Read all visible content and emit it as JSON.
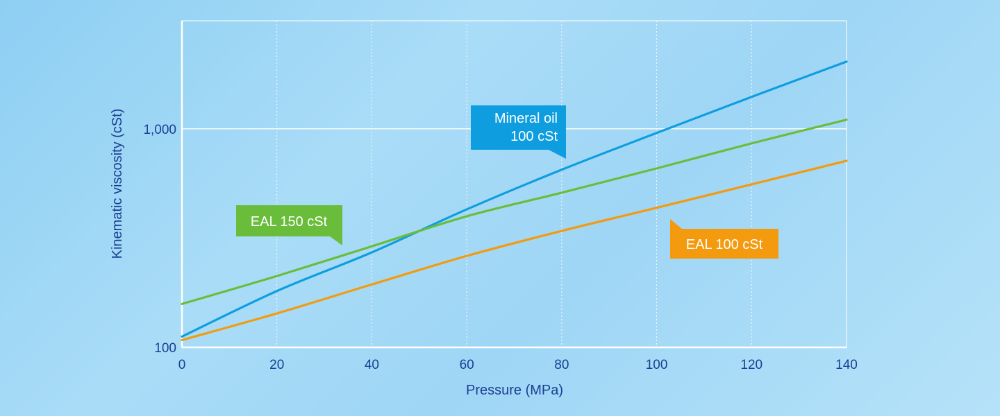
{
  "chart_data": {
    "type": "line",
    "xlabel": "Pressure (MPa)",
    "ylabel": "Kinematic viscosity (cSt)",
    "xlim": [
      0,
      140
    ],
    "ylim": [
      100,
      3120
    ],
    "yscale": "log",
    "xticks": [
      0,
      20,
      40,
      60,
      80,
      100,
      120,
      140
    ],
    "xtick_labels": [
      "0",
      "20",
      "40",
      "60",
      "80",
      "100",
      "120",
      "140"
    ],
    "yticks": [
      100,
      1000
    ],
    "ytick_labels": [
      "100",
      "1,000"
    ],
    "grid": "vertical dotted at x ticks, solid at 1,000",
    "x": [
      0,
      20,
      40,
      60,
      80,
      100,
      120,
      140
    ],
    "series": [
      {
        "name": "Mineral oil 100 cSt",
        "label_lines": [
          "Mineral oil",
          "100 cSt"
        ],
        "color": "#0e9ee0",
        "values": [
          112,
          181,
          272,
          428,
          650,
          957,
          1400,
          2030
        ]
      },
      {
        "name": "EAL 150 cSt",
        "label_lines": [
          "EAL 150 cSt"
        ],
        "color": "#6abd3a",
        "values": [
          158,
          212,
          290,
          398,
          510,
          659,
          858,
          1100
        ]
      },
      {
        "name": "EAL 100 cSt",
        "label_lines": [
          "EAL 100 cSt"
        ],
        "color": "#f39a0f",
        "values": [
          108,
          143,
          194,
          262,
          341,
          435,
          557,
          714
        ]
      }
    ]
  }
}
